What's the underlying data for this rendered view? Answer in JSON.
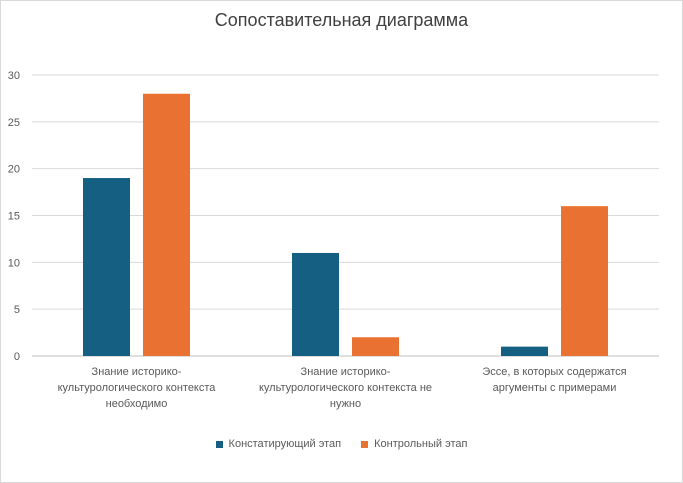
{
  "chart_data": {
    "type": "bar",
    "title": "Сопоставительная диаграмма",
    "categories": [
      [
        "Знание историко-",
        "культурологического контекста",
        "необходимо"
      ],
      [
        "Знание историко-",
        "культурологического контекста не",
        "нужно"
      ],
      [
        "Эссе, в которых содержатся",
        "аргументы с примерами"
      ]
    ],
    "series": [
      {
        "name": "Констатирующий этап",
        "values": [
          19,
          11,
          1
        ],
        "color": "#156082"
      },
      {
        "name": "Контрольный этап",
        "values": [
          28,
          2,
          16
        ],
        "color": "#E97132"
      }
    ],
    "ylim": [
      0,
      30
    ],
    "yticks": [
      0,
      5,
      10,
      15,
      20,
      25,
      30
    ],
    "grid": true,
    "legend_position": "bottom"
  }
}
